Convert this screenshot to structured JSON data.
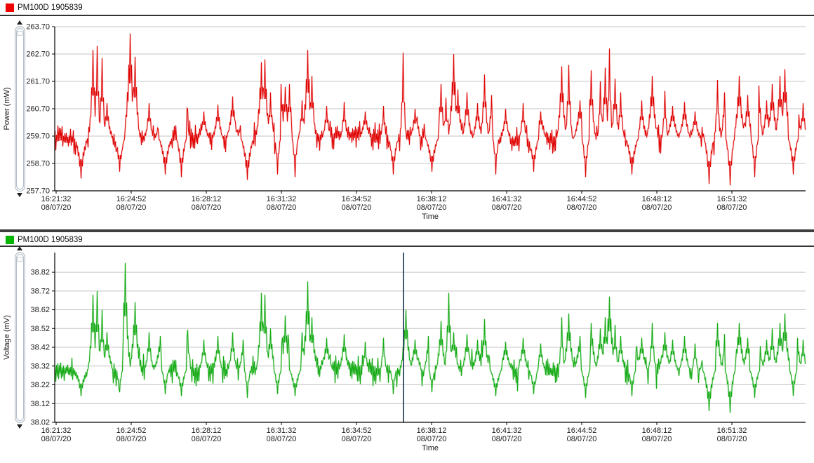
{
  "colors": {
    "grid": "#c4c4c4",
    "axis": "#000000",
    "text": "#1a1a1a",
    "separator": "#3f3f3f",
    "background": "#ffffff"
  },
  "chart_data": [
    {
      "type": "line",
      "legend": "PM100D 1905839",
      "legend_color": "#ee0000",
      "series_color": "#e00505",
      "series_color_light": "#f5b2b2",
      "ylabel": "Power (mW)",
      "xlabel": "Time",
      "ylim": [
        257.7,
        263.7
      ],
      "y_ticks": [
        "263.70",
        "262.70",
        "261.70",
        "260.70",
        "259.70",
        "258.70",
        "257.70"
      ],
      "x_ticks": [
        {
          "time": "16:21:32",
          "date": "08/07/20"
        },
        {
          "time": "16:24:52",
          "date": "08/07/20"
        },
        {
          "time": "16:28:12",
          "date": "08/07/20"
        },
        {
          "time": "16:31:32",
          "date": "08/07/20"
        },
        {
          "time": "16:34:52",
          "date": "08/07/20"
        },
        {
          "time": "16:38:12",
          "date": "08/07/20"
        },
        {
          "time": "16:41:32",
          "date": "08/07/20"
        },
        {
          "time": "16:44:52",
          "date": "08/07/20"
        },
        {
          "time": "16:48:12",
          "date": "08/07/20"
        },
        {
          "time": "16:51:32",
          "date": "08/07/20"
        }
      ],
      "baseline": 259.62,
      "noise_amplitude": 0.58,
      "seed": 42,
      "spikes": [
        [
          0.05,
          262.85
        ],
        [
          0.056,
          263.0
        ],
        [
          0.063,
          262.55
        ],
        [
          0.069,
          260.9
        ],
        [
          0.1,
          263.45
        ],
        [
          0.107,
          262.6
        ],
        [
          0.125,
          260.9
        ],
        [
          0.14,
          260.8
        ],
        [
          0.175,
          262.2
        ],
        [
          0.198,
          260.6
        ],
        [
          0.217,
          260.85
        ],
        [
          0.236,
          261.15
        ],
        [
          0.25,
          260.7
        ],
        [
          0.275,
          262.4
        ],
        [
          0.279,
          262.5
        ],
        [
          0.287,
          261.3
        ],
        [
          0.301,
          261.6
        ],
        [
          0.307,
          261.5
        ],
        [
          0.312,
          261.6
        ],
        [
          0.329,
          261.0
        ],
        [
          0.336,
          262.85
        ],
        [
          0.342,
          261.9
        ],
        [
          0.362,
          260.8
        ],
        [
          0.385,
          260.95
        ],
        [
          0.413,
          260.6
        ],
        [
          0.437,
          260.8
        ],
        [
          0.464,
          262.75
        ],
        [
          0.479,
          260.7
        ],
        [
          0.497,
          260.9
        ],
        [
          0.514,
          261.6
        ],
        [
          0.521,
          261.1
        ],
        [
          0.531,
          262.7
        ],
        [
          0.536,
          261.4
        ],
        [
          0.549,
          261.3
        ],
        [
          0.563,
          260.9
        ],
        [
          0.572,
          261.95
        ],
        [
          0.581,
          261.2
        ],
        [
          0.6,
          260.7
        ],
        [
          0.623,
          260.9
        ],
        [
          0.647,
          260.6
        ],
        [
          0.675,
          262.25
        ],
        [
          0.684,
          262.3
        ],
        [
          0.699,
          261.0
        ],
        [
          0.714,
          262.1
        ],
        [
          0.726,
          261.7
        ],
        [
          0.733,
          262.2
        ],
        [
          0.738,
          262.9
        ],
        [
          0.746,
          261.8
        ],
        [
          0.753,
          261.3
        ],
        [
          0.773,
          261.5
        ],
        [
          0.781,
          261.0
        ],
        [
          0.795,
          261.9
        ],
        [
          0.812,
          261.35
        ],
        [
          0.822,
          260.8
        ],
        [
          0.838,
          260.95
        ],
        [
          0.852,
          260.6
        ],
        [
          0.866,
          260.7
        ],
        [
          0.882,
          261.75
        ],
        [
          0.892,
          261.3
        ],
        [
          0.901,
          261.95
        ],
        [
          0.911,
          261.9
        ],
        [
          0.922,
          261.2
        ],
        [
          0.937,
          261.55
        ],
        [
          0.948,
          261.0
        ],
        [
          0.955,
          261.6
        ],
        [
          0.965,
          261.9
        ],
        [
          0.972,
          262.15
        ],
        [
          0.98,
          262.4
        ],
        [
          0.989,
          261.0
        ],
        [
          0.996,
          260.9
        ]
      ],
      "dips": [
        [
          0.035,
          258.15
        ],
        [
          0.086,
          258.4
        ],
        [
          0.147,
          258.3
        ],
        [
          0.168,
          258.2
        ],
        [
          0.256,
          258.1
        ],
        [
          0.296,
          258.3
        ],
        [
          0.32,
          258.2
        ],
        [
          0.45,
          258.3
        ],
        [
          0.502,
          258.4
        ],
        [
          0.587,
          258.3
        ],
        [
          0.637,
          258.4
        ],
        [
          0.707,
          258.2
        ],
        [
          0.768,
          258.3
        ],
        [
          0.871,
          257.95
        ],
        [
          0.899,
          257.9
        ],
        [
          0.932,
          258.2
        ],
        [
          0.983,
          258.3
        ]
      ]
    },
    {
      "type": "line",
      "legend": "PM100D 1905839",
      "legend_color": "#00b400",
      "series_color": "#16ab16",
      "series_color_light": "#a8e0a8",
      "ylabel": "Voltage (mV)",
      "xlabel": "Time",
      "ylim": [
        38.02,
        38.925
      ],
      "y_ticks": [
        "38.82",
        "38.72",
        "38.62",
        "38.52",
        "38.42",
        "38.32",
        "38.22",
        "38.12",
        "38.02"
      ],
      "x_ticks": [
        {
          "time": "16:21:32",
          "date": "08/07/20"
        },
        {
          "time": "16:24:52",
          "date": "08/07/20"
        },
        {
          "time": "16:28:12",
          "date": "08/07/20"
        },
        {
          "time": "16:31:32",
          "date": "08/07/20"
        },
        {
          "time": "16:34:52",
          "date": "08/07/20"
        },
        {
          "time": "16:38:12",
          "date": "08/07/20"
        },
        {
          "time": "16:41:32",
          "date": "08/07/20"
        },
        {
          "time": "16:44:52",
          "date": "08/07/20"
        },
        {
          "time": "16:48:12",
          "date": "08/07/20"
        },
        {
          "time": "16:51:32",
          "date": "08/07/20"
        }
      ],
      "baseline": 38.3,
      "noise_amplitude": 0.085,
      "seed": 1337,
      "cursor_fraction": 0.4645,
      "cursor_color": "#16324a",
      "spikes": [
        [
          0.05,
          38.7
        ],
        [
          0.056,
          38.72
        ],
        [
          0.063,
          38.62
        ],
        [
          0.069,
          38.5
        ],
        [
          0.093,
          38.87
        ],
        [
          0.107,
          38.66
        ],
        [
          0.125,
          38.5
        ],
        [
          0.14,
          38.48
        ],
        [
          0.175,
          38.67
        ],
        [
          0.198,
          38.46
        ],
        [
          0.217,
          38.48
        ],
        [
          0.236,
          38.5
        ],
        [
          0.25,
          38.46
        ],
        [
          0.275,
          38.71
        ],
        [
          0.279,
          38.7
        ],
        [
          0.287,
          38.52
        ],
        [
          0.301,
          38.6
        ],
        [
          0.307,
          38.59
        ],
        [
          0.312,
          38.6
        ],
        [
          0.329,
          38.5
        ],
        [
          0.336,
          38.77
        ],
        [
          0.342,
          38.58
        ],
        [
          0.362,
          38.47
        ],
        [
          0.385,
          38.49
        ],
        [
          0.413,
          38.45
        ],
        [
          0.437,
          38.47
        ],
        [
          0.467,
          38.62
        ],
        [
          0.479,
          38.46
        ],
        [
          0.497,
          38.48
        ],
        [
          0.514,
          38.56
        ],
        [
          0.524,
          38.71
        ],
        [
          0.531,
          38.5
        ],
        [
          0.549,
          38.49
        ],
        [
          0.563,
          38.46
        ],
        [
          0.572,
          38.57
        ],
        [
          0.581,
          38.48
        ],
        [
          0.6,
          38.45
        ],
        [
          0.623,
          38.47
        ],
        [
          0.647,
          38.44
        ],
        [
          0.675,
          38.58
        ],
        [
          0.684,
          38.6
        ],
        [
          0.699,
          38.48
        ],
        [
          0.714,
          38.55
        ],
        [
          0.726,
          38.52
        ],
        [
          0.733,
          38.58
        ],
        [
          0.738,
          38.69
        ],
        [
          0.746,
          38.54
        ],
        [
          0.753,
          38.48
        ],
        [
          0.773,
          38.52
        ],
        [
          0.781,
          38.47
        ],
        [
          0.795,
          38.55
        ],
        [
          0.812,
          38.5
        ],
        [
          0.822,
          38.46
        ],
        [
          0.838,
          38.48
        ],
        [
          0.852,
          38.44
        ],
        [
          0.866,
          38.45
        ],
        [
          0.882,
          38.55
        ],
        [
          0.892,
          38.49
        ],
        [
          0.901,
          38.56
        ],
        [
          0.911,
          38.55
        ],
        [
          0.922,
          38.47
        ],
        [
          0.937,
          38.52
        ],
        [
          0.948,
          38.46
        ],
        [
          0.955,
          38.52
        ],
        [
          0.965,
          38.55
        ],
        [
          0.972,
          38.6
        ],
        [
          0.98,
          38.64
        ],
        [
          0.989,
          38.47
        ],
        [
          0.996,
          38.46
        ]
      ],
      "dips": [
        [
          0.035,
          38.16
        ],
        [
          0.086,
          38.18
        ],
        [
          0.147,
          38.17
        ],
        [
          0.168,
          38.16
        ],
        [
          0.256,
          38.15
        ],
        [
          0.296,
          38.17
        ],
        [
          0.32,
          38.16
        ],
        [
          0.45,
          38.17
        ],
        [
          0.502,
          38.18
        ],
        [
          0.587,
          38.16
        ],
        [
          0.637,
          38.17
        ],
        [
          0.707,
          38.15
        ],
        [
          0.768,
          38.16
        ],
        [
          0.871,
          38.08
        ],
        [
          0.899,
          38.07
        ],
        [
          0.932,
          38.15
        ],
        [
          0.983,
          38.16
        ]
      ]
    }
  ]
}
